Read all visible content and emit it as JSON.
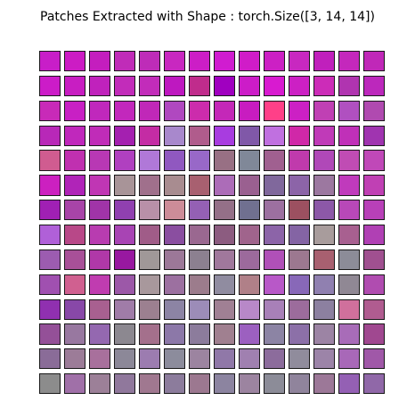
{
  "title": "Patches Extracted with Shape : torch.Size([3, 14, 14])",
  "grid": {
    "rows": 14,
    "cols": 14,
    "colors": [
      [
        "#c81ec8",
        "#cc1cc4",
        "#c41ebe",
        "#c02cb8",
        "#be2cb8",
        "#c828c0",
        "#cc1ec6",
        "#d01cd0",
        "#d01cc8",
        "#cc20c4",
        "#c828c0",
        "#c020bc",
        "#c428bc",
        "#c028b8"
      ],
      [
        "#cc1cc8",
        "#c81ec2",
        "#c022bc",
        "#c22cba",
        "#c22cba",
        "#be18c0",
        "#c02c8c",
        "#a000c0",
        "#cc1cc8",
        "#d81ad0",
        "#cc20c4",
        "#cc2cb8",
        "#b034b0",
        "#bc28bc"
      ],
      [
        "#c82ab8",
        "#c820c4",
        "#c028bc",
        "#c228bc",
        "#c028b8",
        "#b048c0",
        "#cc2cac",
        "#c428b8",
        "#c81cc0",
        "#ff4088",
        "#cc20c4",
        "#c040b4",
        "#b050c0",
        "#b04ab0"
      ],
      [
        "#b828b8",
        "#c028bc",
        "#c02cb8",
        "#a420b0",
        "#c42ca4",
        "#a888cc",
        "#b05c8c",
        "#a83ce0",
        "#8058a8",
        "#c070e0",
        "#d028a8",
        "#c03ab8",
        "#c030b8",
        "#a034b0"
      ],
      [
        "#d05c90",
        "#c030b0",
        "#b838b4",
        "#b040c0",
        "#b078d8",
        "#9058c0",
        "#9868c8",
        "#987084",
        "#808898",
        "#a06090",
        "#c03aac",
        "#b048b8",
        "#c04cb4",
        "#c048b8"
      ],
      [
        "#cc20c0",
        "#b024b8",
        "#c036b4",
        "#a89498",
        "#a0708c",
        "#a88c90",
        "#a86070",
        "#ac6cb8",
        "#9a6090",
        "#80689c",
        "#8c64a8",
        "#9c78a0",
        "#c03abc",
        "#c040b4"
      ],
      [
        "#a020b4",
        "#a844a8",
        "#a034a8",
        "#9040b0",
        "#b890a8",
        "#cc8c98",
        "#9460b4",
        "#947088",
        "#707090",
        "#9c70a0",
        "#9c5060",
        "#8c58a8",
        "#b848b8",
        "#b840b8"
      ],
      [
        "#b060d8",
        "#b84888",
        "#b83cb0",
        "#a844b4",
        "#a05c88",
        "#8a4ea0",
        "#9a6890",
        "#8c5c80",
        "#a0648c",
        "#8c64a8",
        "#8464a4",
        "#a89c9c",
        "#a86090",
        "#b040b4"
      ],
      [
        "#9c5cb0",
        "#a85098",
        "#b038a8",
        "#9818a0",
        "#a09898",
        "#9c7898",
        "#8c8090",
        "#a0789c",
        "#9c6a9c",
        "#b050b8",
        "#9c7890",
        "#a86070",
        "#8c8c98",
        "#a05090"
      ],
      [
        "#a050b0",
        "#d06090",
        "#c03cb0",
        "#9c58a8",
        "#a8989c",
        "#9c70a0",
        "#9c7c8c",
        "#908ca0",
        "#b08088",
        "#b858c8",
        "#8868b8",
        "#9080b0",
        "#908894",
        "#b04cb0"
      ],
      [
        "#9030b0",
        "#8848a8",
        "#a86090",
        "#a07ca8",
        "#9c8090",
        "#8c84a4",
        "#9c8cb8",
        "#a08094",
        "#b888c8",
        "#a880b8",
        "#9c6c9c",
        "#8c80a0",
        "#d0709c",
        "#b05c90"
      ],
      [
        "#945098",
        "#9878a0",
        "#9468b0",
        "#8c8890",
        "#a4708c",
        "#8c78a8",
        "#8c7c9c",
        "#a08090",
        "#9c60c0",
        "#8c84a4",
        "#8c70a8",
        "#9c84a4",
        "#a86cb8",
        "#a04890"
      ],
      [
        "#8a6c98",
        "#9c7c98",
        "#a8709c",
        "#8c8898",
        "#9c7cb0",
        "#8c8c9c",
        "#9c84a0",
        "#9078a8",
        "#a080b0",
        "#8c6c9c",
        "#908c9c",
        "#9c84a8",
        "#a868b8",
        "#a058a8"
      ],
      [
        "#8c8c8c",
        "#a070a8",
        "#9c8098",
        "#90789c",
        "#a07890",
        "#8c7c9c",
        "#9c7890",
        "#8c84a0",
        "#9c84a0",
        "#8c8c98",
        "#90849c",
        "#9c7898",
        "#9460b4",
        "#9068a8"
      ]
    ]
  }
}
